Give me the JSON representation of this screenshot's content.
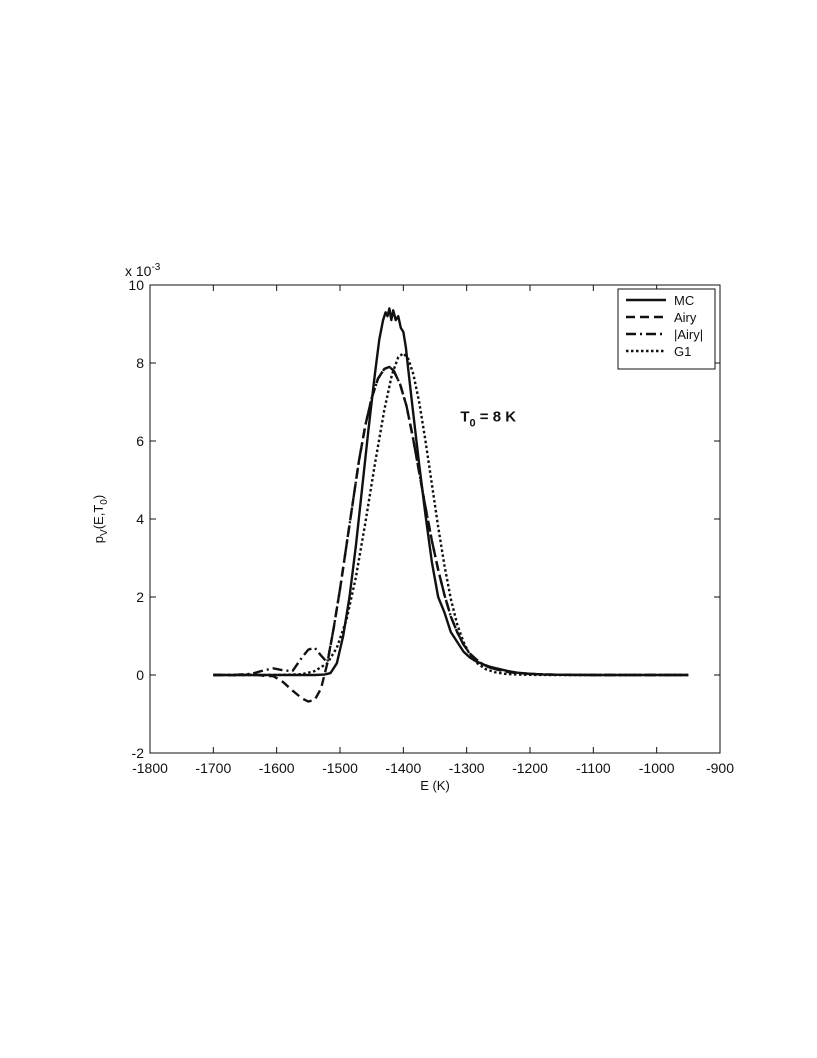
{
  "chart_data": {
    "type": "line",
    "title": "",
    "xlabel": "E  (K)",
    "ylabel": {
      "main": "p",
      "sub1": "V",
      "mid": "(E,T",
      "sub2": "0",
      "end": ")"
    },
    "y_exponent": {
      "base": "x 10",
      "power": "-3"
    },
    "annotation": {
      "main": "T",
      "sub": "0",
      "rest": " = 8 K",
      "x": -1310,
      "y": 6.5
    },
    "xlim": [
      -1800,
      -900
    ],
    "ylim": [
      -2,
      10
    ],
    "xticks": [
      -1800,
      -1700,
      -1600,
      -1500,
      -1400,
      -1300,
      -1200,
      -1100,
      -1000,
      -900
    ],
    "yticks": [
      -2,
      0,
      2,
      4,
      6,
      8,
      10
    ],
    "grid": false,
    "legend": {
      "placement": "top-right",
      "entries": [
        "MC",
        "Airy",
        "|Airy|",
        "G1"
      ]
    },
    "series": [
      {
        "name": "MC",
        "style": "solid",
        "x": [
          -1700,
          -1600,
          -1540,
          -1525,
          -1515,
          -1505,
          -1495,
          -1485,
          -1475,
          -1465,
          -1455,
          -1445,
          -1438,
          -1432,
          -1428,
          -1425,
          -1422,
          -1419,
          -1416,
          -1412,
          -1408,
          -1404,
          -1400,
          -1396,
          -1392,
          -1385,
          -1375,
          -1365,
          -1355,
          -1345,
          -1335,
          -1325,
          -1315,
          -1305,
          -1295,
          -1285,
          -1275,
          -1265,
          -1255,
          -1245,
          -1235,
          -1220,
          -1200,
          -1180,
          -1150,
          -1100,
          -1050,
          -1000,
          -950
        ],
        "values": [
          0,
          0,
          0,
          0.01,
          0.05,
          0.3,
          1.0,
          2.0,
          3.3,
          4.8,
          6.3,
          7.7,
          8.6,
          9.1,
          9.3,
          9.2,
          9.4,
          9.1,
          9.35,
          9.1,
          9.2,
          8.9,
          8.8,
          8.4,
          7.8,
          6.8,
          5.4,
          4.1,
          2.9,
          2.0,
          1.6,
          1.1,
          0.85,
          0.6,
          0.45,
          0.35,
          0.28,
          0.22,
          0.18,
          0.14,
          0.1,
          0.06,
          0.03,
          0.015,
          0.005,
          0,
          0,
          0,
          0
        ]
      },
      {
        "name": "Airy",
        "style": "dashed",
        "x": [
          -1700,
          -1680,
          -1660,
          -1640,
          -1620,
          -1605,
          -1590,
          -1575,
          -1560,
          -1550,
          -1540,
          -1530,
          -1520,
          -1510,
          -1500,
          -1490,
          -1480,
          -1470,
          -1460,
          -1450,
          -1440,
          -1430,
          -1422,
          -1415,
          -1405,
          -1395,
          -1385,
          -1375,
          -1365,
          -1355,
          -1345,
          -1335,
          -1325,
          -1315,
          -1305,
          -1295,
          -1285,
          -1275,
          -1265,
          -1250,
          -1235,
          -1220,
          -1200,
          -1180,
          -1150,
          -1100,
          -1050,
          -1000,
          -950
        ],
        "values": [
          0,
          0,
          -0.01,
          0.02,
          -0.02,
          -0.03,
          -0.18,
          -0.4,
          -0.6,
          -0.68,
          -0.64,
          -0.35,
          0.3,
          1.2,
          2.2,
          3.3,
          4.4,
          5.5,
          6.4,
          7.1,
          7.6,
          7.85,
          7.9,
          7.8,
          7.45,
          6.9,
          6.1,
          5.2,
          4.3,
          3.45,
          2.7,
          2.05,
          1.5,
          1.1,
          0.78,
          0.55,
          0.4,
          0.28,
          0.2,
          0.13,
          0.08,
          0.05,
          0.03,
          0.015,
          0.005,
          0,
          0,
          0,
          0
        ]
      },
      {
        "name": "|Airy|",
        "style": "dashdot",
        "x": [
          -1700,
          -1680,
          -1660,
          -1640,
          -1620,
          -1605,
          -1590,
          -1575,
          -1560,
          -1550,
          -1540,
          -1530,
          -1520,
          -1510,
          -1500,
          -1490,
          -1480,
          -1470,
          -1460,
          -1450,
          -1440,
          -1430,
          -1422,
          -1415,
          -1405,
          -1395,
          -1385,
          -1375,
          -1365,
          -1355,
          -1345,
          -1335,
          -1325,
          -1315,
          -1305,
          -1295,
          -1285,
          -1275,
          -1265,
          -1250,
          -1235,
          -1220,
          -1200,
          -1180,
          -1150,
          -1100,
          -1050,
          -1000,
          -950
        ],
        "values": [
          0,
          0,
          0.01,
          0.03,
          0.12,
          0.17,
          0.12,
          0.1,
          0.45,
          0.65,
          0.7,
          0.5,
          0.32,
          1.2,
          2.2,
          3.3,
          4.4,
          5.5,
          6.4,
          7.1,
          7.6,
          7.85,
          7.9,
          7.8,
          7.45,
          6.9,
          6.1,
          5.2,
          4.3,
          3.45,
          2.7,
          2.05,
          1.5,
          1.1,
          0.78,
          0.55,
          0.4,
          0.28,
          0.2,
          0.13,
          0.08,
          0.05,
          0.03,
          0.015,
          0.005,
          0,
          0,
          0,
          0
        ]
      },
      {
        "name": "G1",
        "style": "dotted",
        "x": [
          -1700,
          -1650,
          -1600,
          -1560,
          -1540,
          -1520,
          -1505,
          -1490,
          -1475,
          -1460,
          -1445,
          -1430,
          -1418,
          -1408,
          -1400,
          -1392,
          -1384,
          -1375,
          -1365,
          -1355,
          -1345,
          -1335,
          -1325,
          -1315,
          -1305,
          -1295,
          -1285,
          -1270,
          -1255,
          -1240,
          -1225,
          -1210,
          -1190,
          -1170,
          -1150,
          -1100,
          -1050,
          -1000,
          -950
        ],
        "values": [
          0,
          0,
          0,
          0.02,
          0.1,
          0.3,
          0.7,
          1.4,
          2.5,
          3.9,
          5.4,
          6.8,
          7.7,
          8.15,
          8.25,
          8.1,
          7.7,
          7.0,
          6.0,
          4.9,
          3.8,
          2.8,
          1.95,
          1.3,
          0.85,
          0.52,
          0.32,
          0.15,
          0.07,
          0.03,
          0.015,
          0.007,
          0.003,
          0,
          0,
          0,
          0,
          0,
          0
        ]
      }
    ]
  }
}
